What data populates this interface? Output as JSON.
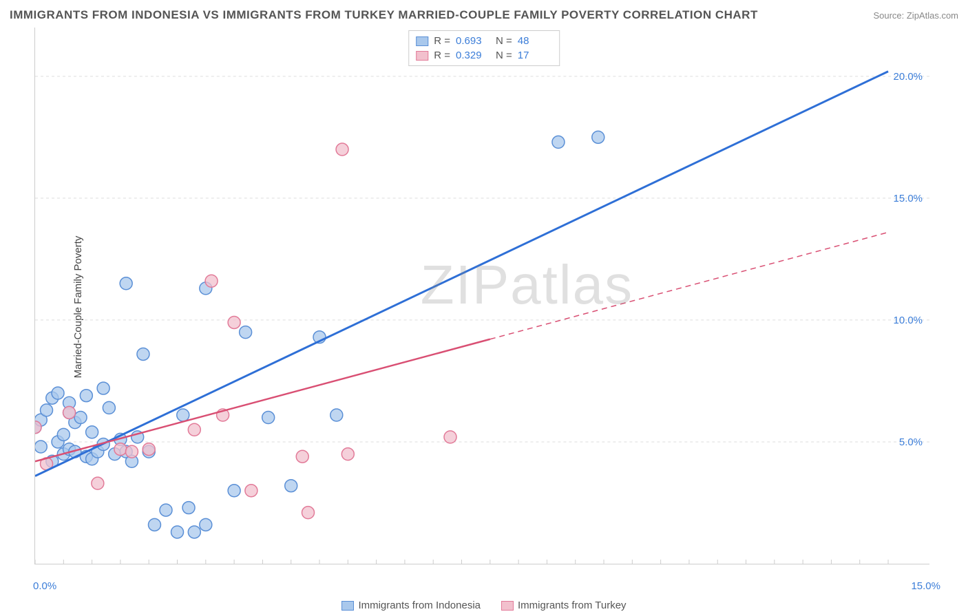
{
  "title": "IMMIGRANTS FROM INDONESIA VS IMMIGRANTS FROM TURKEY MARRIED-COUPLE FAMILY POVERTY CORRELATION CHART",
  "source": "Source: ZipAtlas.com",
  "ylabel": "Married-Couple Family Poverty",
  "watermark": "ZIPatlas",
  "chart": {
    "type": "scatter",
    "background_color": "#ffffff",
    "grid_color": "#dddddd",
    "grid_dash": "4 4",
    "border_color": "#cccccc",
    "xlim": [
      0,
      15
    ],
    "ylim": [
      0,
      22
    ],
    "x_ticks": [
      {
        "v": 0,
        "label": "0.0%"
      },
      {
        "v": 15,
        "label": "15.0%"
      }
    ],
    "y_ticks": [
      {
        "v": 5,
        "label": "5.0%"
      },
      {
        "v": 10,
        "label": "10.0%"
      },
      {
        "v": 15,
        "label": "15.0%"
      },
      {
        "v": 20,
        "label": "20.0%"
      }
    ],
    "series": [
      {
        "name": "Immigrants from Indonesia",
        "color_fill": "#a9c8ec",
        "color_stroke": "#5a8fd6",
        "marker_radius": 9,
        "marker_opacity": 0.75,
        "r_value": "0.693",
        "n_value": "48",
        "trend": {
          "x1": 0,
          "y1": 3.6,
          "x2": 15,
          "y2": 20.2,
          "stroke": "#2e6fd6",
          "width": 3,
          "solid_until_x": 15
        },
        "points": [
          [
            0.0,
            5.6
          ],
          [
            0.1,
            4.8
          ],
          [
            0.1,
            5.9
          ],
          [
            0.2,
            6.3
          ],
          [
            0.3,
            4.2
          ],
          [
            0.3,
            6.8
          ],
          [
            0.4,
            5.0
          ],
          [
            0.4,
            7.0
          ],
          [
            0.5,
            4.5
          ],
          [
            0.5,
            5.3
          ],
          [
            0.6,
            4.7
          ],
          [
            0.6,
            6.6
          ],
          [
            0.7,
            4.6
          ],
          [
            0.7,
            5.8
          ],
          [
            0.8,
            6.0
          ],
          [
            0.9,
            4.4
          ],
          [
            0.9,
            6.9
          ],
          [
            1.0,
            4.3
          ],
          [
            1.0,
            5.4
          ],
          [
            1.1,
            4.6
          ],
          [
            1.2,
            7.2
          ],
          [
            1.2,
            4.9
          ],
          [
            1.3,
            6.4
          ],
          [
            1.4,
            4.5
          ],
          [
            1.5,
            5.1
          ],
          [
            1.6,
            4.6
          ],
          [
            1.6,
            11.5
          ],
          [
            1.7,
            4.2
          ],
          [
            1.8,
            5.2
          ],
          [
            1.9,
            8.6
          ],
          [
            2.0,
            4.6
          ],
          [
            2.1,
            1.6
          ],
          [
            2.3,
            2.2
          ],
          [
            2.5,
            1.3
          ],
          [
            2.6,
            6.1
          ],
          [
            2.7,
            2.3
          ],
          [
            2.8,
            1.3
          ],
          [
            3.0,
            1.6
          ],
          [
            3.0,
            11.3
          ],
          [
            3.5,
            3.0
          ],
          [
            3.7,
            9.5
          ],
          [
            4.1,
            6.0
          ],
          [
            4.5,
            3.2
          ],
          [
            5.0,
            9.3
          ],
          [
            5.3,
            6.1
          ],
          [
            9.2,
            17.3
          ],
          [
            9.9,
            17.5
          ],
          [
            0.6,
            6.2
          ]
        ]
      },
      {
        "name": "Immigrants from Turkey",
        "color_fill": "#f2c0cd",
        "color_stroke": "#e27a98",
        "marker_radius": 9,
        "marker_opacity": 0.75,
        "r_value": "0.329",
        "n_value": "17",
        "trend": {
          "x1": 0,
          "y1": 4.2,
          "x2": 15,
          "y2": 13.6,
          "stroke": "#d94f73",
          "width": 2.5,
          "solid_until_x": 8.0
        },
        "points": [
          [
            0.0,
            5.6
          ],
          [
            0.2,
            4.1
          ],
          [
            0.6,
            6.2
          ],
          [
            1.1,
            3.3
          ],
          [
            1.5,
            4.7
          ],
          [
            1.7,
            4.6
          ],
          [
            2.0,
            4.7
          ],
          [
            3.1,
            11.6
          ],
          [
            3.3,
            6.1
          ],
          [
            3.5,
            9.9
          ],
          [
            3.8,
            3.0
          ],
          [
            4.7,
            4.4
          ],
          [
            4.8,
            2.1
          ],
          [
            5.4,
            17.0
          ],
          [
            5.5,
            4.5
          ],
          [
            7.3,
            5.2
          ],
          [
            2.8,
            5.5
          ]
        ]
      }
    ],
    "legend_series": [
      {
        "label": "Immigrants from Indonesia",
        "fill": "#a9c8ec",
        "stroke": "#5a8fd6"
      },
      {
        "label": "Immigrants from Turkey",
        "fill": "#f2c0cd",
        "stroke": "#e27a98"
      }
    ],
    "tick_label_color": "#3b7dd8",
    "tick_label_fontsize": 15,
    "title_color": "#555555",
    "title_fontsize": 17
  }
}
